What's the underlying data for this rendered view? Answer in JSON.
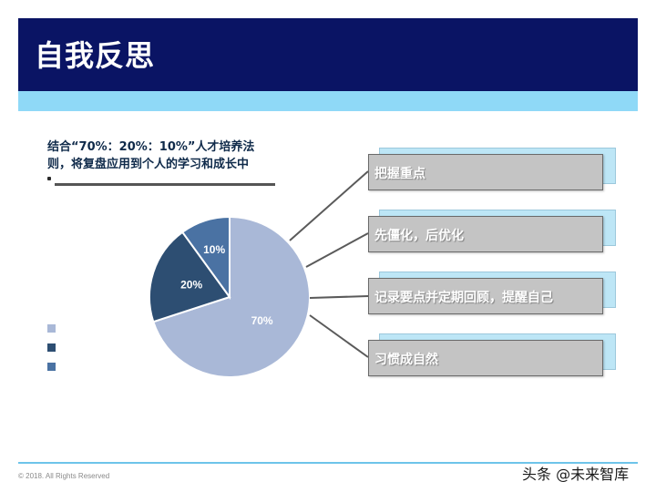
{
  "header": {
    "title": "自我反思"
  },
  "intro": {
    "line1": "结合“70%：20%：10%”人才培养法",
    "line2": "则，将复盘应用到个人的学习和成长中"
  },
  "chart_data": {
    "type": "pie",
    "values": [
      70,
      20,
      10
    ],
    "labels": [
      "70%",
      "20%",
      "10%"
    ],
    "colors": [
      "#a9b8d7",
      "#2d4e72",
      "#4a72a3"
    ],
    "legend": "bottom-left"
  },
  "boxes": [
    {
      "label": "把握重点"
    },
    {
      "label": "先僵化，后优化"
    },
    {
      "label": "记录要点并定期回顾，提醒自己"
    },
    {
      "label": "习惯成自然"
    }
  ],
  "footer": {
    "copyright": "© 2018. All Rights Reserved"
  },
  "watermark": "头条 @未来智库"
}
